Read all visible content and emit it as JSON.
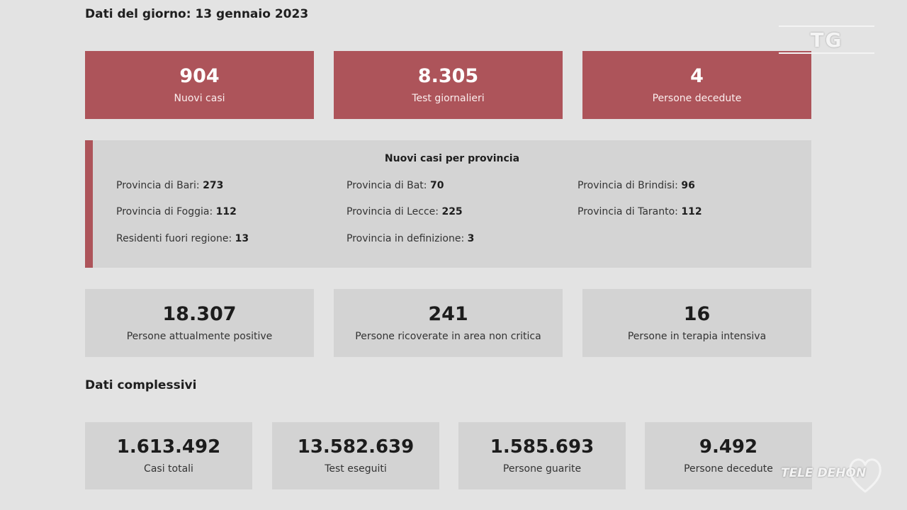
{
  "day_heading": "Dati del giorno: 13 gennaio 2023",
  "daily_cards": [
    {
      "value": "904",
      "label": "Nuovi casi"
    },
    {
      "value": "8.305",
      "label": "Test giornalieri"
    },
    {
      "value": "4",
      "label": "Persone decedute"
    }
  ],
  "province_panel": {
    "title": "Nuovi casi per provincia",
    "items": [
      {
        "label": "Provincia di Bari: ",
        "value": "273"
      },
      {
        "label": "Provincia di Bat: ",
        "value": "70"
      },
      {
        "label": "Provincia di Brindisi: ",
        "value": "96"
      },
      {
        "label": "Provincia di Foggia: ",
        "value": "112"
      },
      {
        "label": "Provincia di Lecce: ",
        "value": "225"
      },
      {
        "label": "Provincia di Taranto: ",
        "value": "112"
      },
      {
        "label": "Residenti fuori regione: ",
        "value": "13"
      },
      {
        "label": "Provincia in definizione: ",
        "value": "3"
      }
    ]
  },
  "status_cards": [
    {
      "value": "18.307",
      "label": "Persone attualmente positive"
    },
    {
      "value": "241",
      "label": "Persone ricoverate in area non critica"
    },
    {
      "value": "16",
      "label": "Persone in terapia intensiva"
    }
  ],
  "total_heading": "Dati complessivi",
  "total_cards": [
    {
      "value": "1.613.492",
      "label": "Casi totali"
    },
    {
      "value": "13.582.639",
      "label": "Test eseguiti"
    },
    {
      "value": "1.585.693",
      "label": "Persone guarite"
    },
    {
      "value": "9.492",
      "label": "Persone decedute"
    }
  ],
  "overlay": {
    "tg_logo": "TG",
    "broadcaster_logo": "TELE DEHON"
  },
  "colors": {
    "accent_red": "#ad545a",
    "panel_grey": "#d3d3d3",
    "background": "#e3e3e3"
  }
}
